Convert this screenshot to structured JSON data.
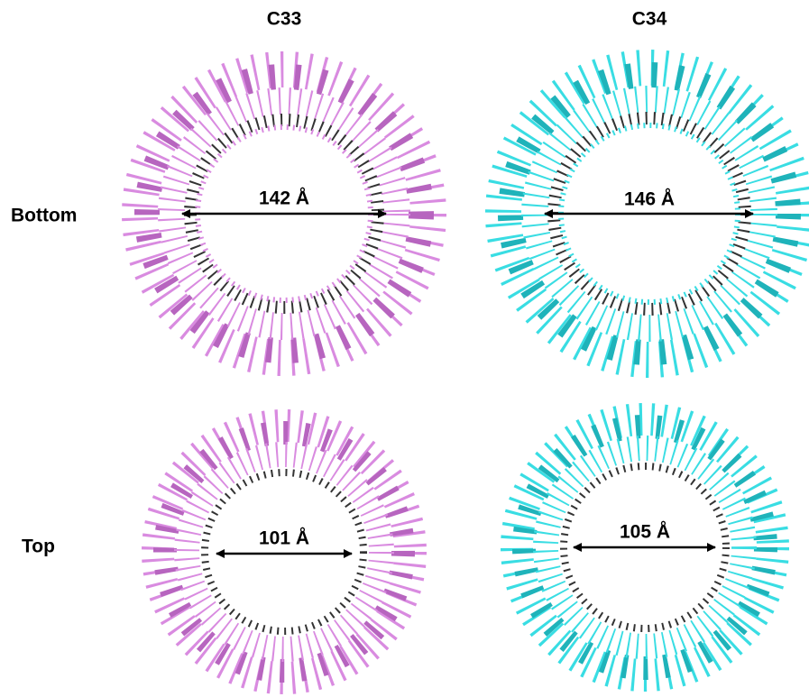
{
  "columns": [
    "C33",
    "C34"
  ],
  "rows": [
    "Bottom",
    "Top"
  ],
  "measurements": [
    [
      "142 Å",
      "146 Å"
    ],
    [
      "101 Å",
      "105 Å"
    ]
  ]
}
